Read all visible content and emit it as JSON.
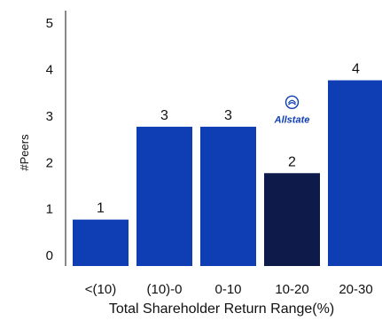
{
  "chart_data": {
    "type": "bar",
    "categories": [
      "<(10)",
      "(10)-0",
      "0-10",
      "10-20",
      "20-30"
    ],
    "values": [
      1,
      3,
      3,
      2,
      4
    ],
    "xlabel": "Total Shareholder Return Range(%)",
    "ylabel": "#Peers",
    "yticks": [
      0,
      1,
      2,
      3,
      4,
      5
    ],
    "ylim": [
      0,
      5.5
    ],
    "highlight": {
      "category": "10-20",
      "label": "Allstate",
      "icon": "allstate-hands-logo-icon"
    },
    "colors": {
      "bar": "#0f3eb4",
      "highlight_bar": "#0d1a4a",
      "brand": "#0f3eb4"
    },
    "grid": false,
    "legend": "none"
  }
}
